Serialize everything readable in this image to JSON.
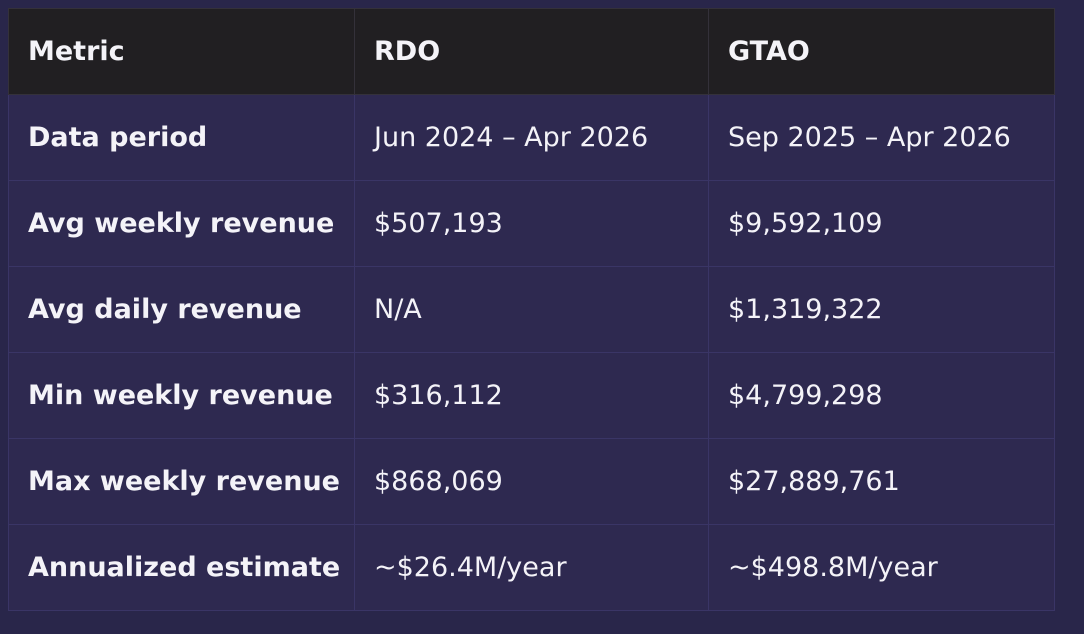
{
  "table": {
    "header": [
      "Metric",
      "RDO",
      "GTAO"
    ],
    "rows": [
      [
        "Data period",
        "Jun 2024 – Apr 2026",
        "Sep 2025 – Apr 2026"
      ],
      [
        "Avg weekly revenue",
        "$507,193",
        "$9,592,109"
      ],
      [
        "Avg daily revenue",
        "N/A",
        "$1,319,322"
      ],
      [
        "Min weekly revenue",
        "$316,112",
        "$4,799,298"
      ],
      [
        "Max weekly revenue",
        "$868,069",
        "$27,889,761"
      ],
      [
        "Annualized estimate",
        "~$26.4M/year",
        "~$498.8M/year"
      ]
    ]
  }
}
